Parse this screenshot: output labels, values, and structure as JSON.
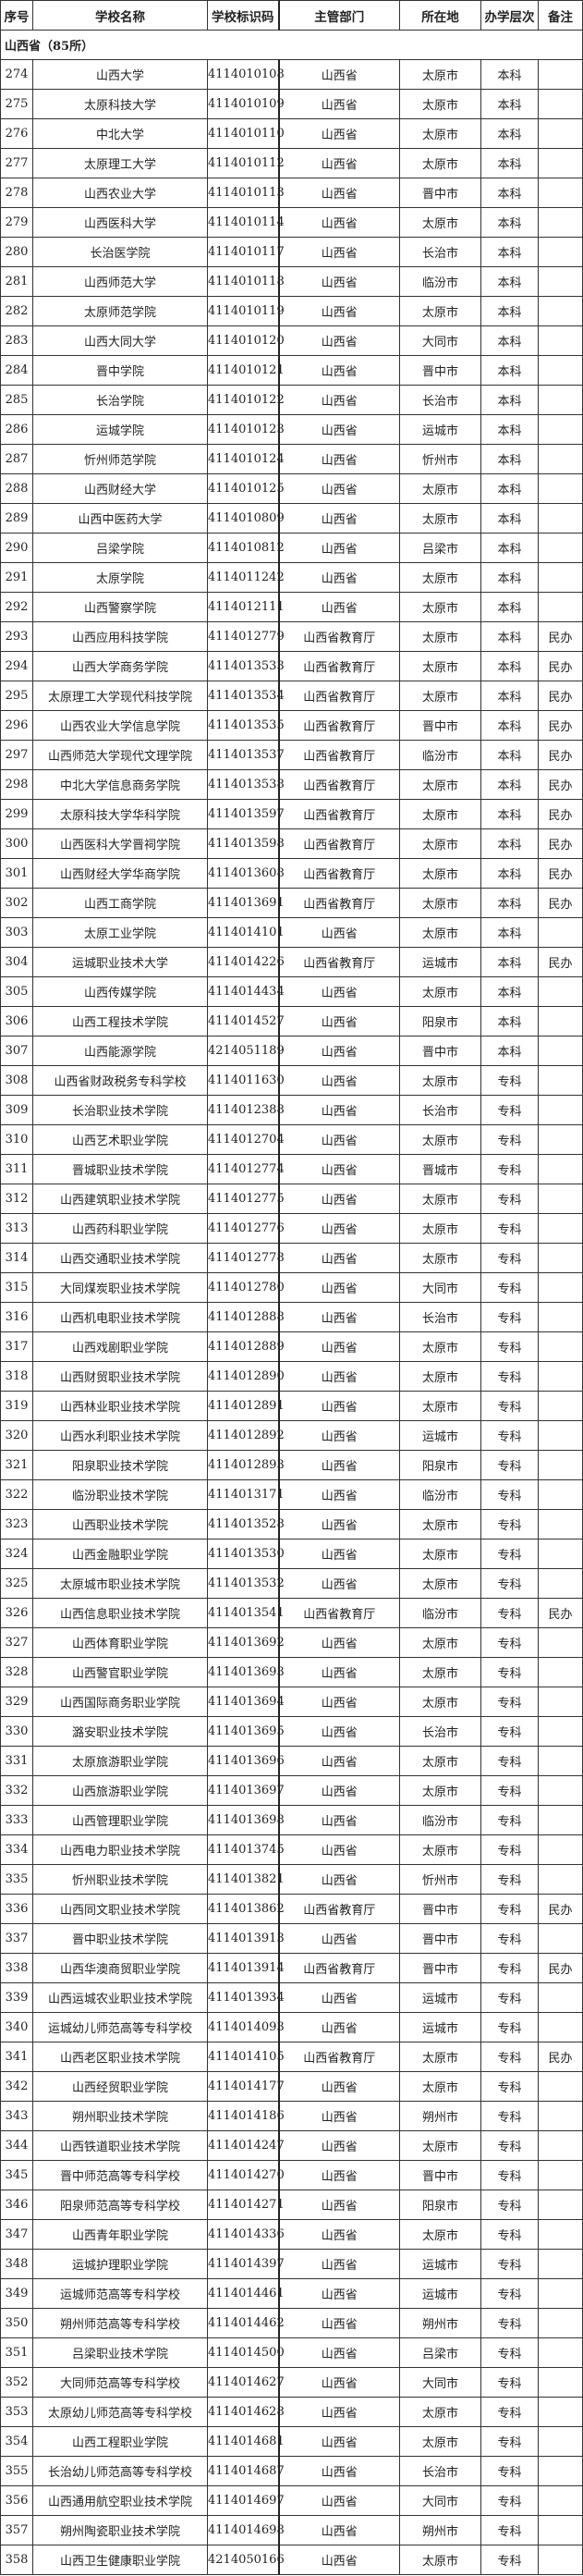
{
  "headers": [
    "序号",
    "学校名称",
    "学校标识码",
    "主管部门",
    "所在地",
    "办学层次",
    "备注"
  ],
  "section_title": "山西省（85所）",
  "rows": [
    [
      "274",
      "山西大学",
      "4114010108",
      "山西省",
      "太原市",
      "本科",
      ""
    ],
    [
      "275",
      "太原科技大学",
      "4114010109",
      "山西省",
      "太原市",
      "本科",
      ""
    ],
    [
      "276",
      "中北大学",
      "4114010110",
      "山西省",
      "太原市",
      "本科",
      ""
    ],
    [
      "277",
      "太原理工大学",
      "4114010112",
      "山西省",
      "太原市",
      "本科",
      ""
    ],
    [
      "278",
      "山西农业大学",
      "4114010113",
      "山西省",
      "晋中市",
      "本科",
      ""
    ],
    [
      "279",
      "山西医科大学",
      "4114010114",
      "山西省",
      "太原市",
      "本科",
      ""
    ],
    [
      "280",
      "长治医学院",
      "4114010117",
      "山西省",
      "长治市",
      "本科",
      ""
    ],
    [
      "281",
      "山西师范大学",
      "4114010118",
      "山西省",
      "临汾市",
      "本科",
      ""
    ],
    [
      "282",
      "太原师范学院",
      "4114010119",
      "山西省",
      "太原市",
      "本科",
      ""
    ],
    [
      "283",
      "山西大同大学",
      "4114010120",
      "山西省",
      "大同市",
      "本科",
      ""
    ],
    [
      "284",
      "晋中学院",
      "4114010121",
      "山西省",
      "晋中市",
      "本科",
      ""
    ],
    [
      "285",
      "长治学院",
      "4114010122",
      "山西省",
      "长治市",
      "本科",
      ""
    ],
    [
      "286",
      "运城学院",
      "4114010123",
      "山西省",
      "运城市",
      "本科",
      ""
    ],
    [
      "287",
      "忻州师范学院",
      "4114010124",
      "山西省",
      "忻州市",
      "本科",
      ""
    ],
    [
      "288",
      "山西财经大学",
      "4114010125",
      "山西省",
      "太原市",
      "本科",
      ""
    ],
    [
      "289",
      "山西中医药大学",
      "4114010809",
      "山西省",
      "太原市",
      "本科",
      ""
    ],
    [
      "290",
      "吕梁学院",
      "4114010812",
      "山西省",
      "吕梁市",
      "本科",
      ""
    ],
    [
      "291",
      "太原学院",
      "4114011242",
      "山西省",
      "太原市",
      "本科",
      ""
    ],
    [
      "292",
      "山西警察学院",
      "4114012111",
      "山西省",
      "太原市",
      "本科",
      ""
    ],
    [
      "293",
      "山西应用科技学院",
      "4114012779",
      "山西省教育厅",
      "太原市",
      "本科",
      "民办"
    ],
    [
      "294",
      "山西大学商务学院",
      "4114013533",
      "山西省教育厅",
      "太原市",
      "本科",
      "民办"
    ],
    [
      "295",
      "太原理工大学现代科技学院",
      "4114013534",
      "山西省教育厅",
      "太原市",
      "本科",
      "民办"
    ],
    [
      "296",
      "山西农业大学信息学院",
      "4114013535",
      "山西省教育厅",
      "晋中市",
      "本科",
      "民办"
    ],
    [
      "297",
      "山西师范大学现代文理学院",
      "4114013537",
      "山西省教育厅",
      "临汾市",
      "本科",
      "民办"
    ],
    [
      "298",
      "中北大学信息商务学院",
      "4114013538",
      "山西省教育厅",
      "太原市",
      "本科",
      "民办"
    ],
    [
      "299",
      "太原科技大学华科学院",
      "4114013597",
      "山西省教育厅",
      "太原市",
      "本科",
      "民办"
    ],
    [
      "300",
      "山西医科大学晋祠学院",
      "4114013598",
      "山西省教育厅",
      "太原市",
      "本科",
      "民办"
    ],
    [
      "301",
      "山西财经大学华商学院",
      "4114013608",
      "山西省教育厅",
      "太原市",
      "本科",
      "民办"
    ],
    [
      "302",
      "山西工商学院",
      "4114013691",
      "山西省教育厅",
      "太原市",
      "本科",
      "民办"
    ],
    [
      "303",
      "太原工业学院",
      "4114014101",
      "山西省",
      "太原市",
      "本科",
      ""
    ],
    [
      "304",
      "运城职业技术大学",
      "4114014226",
      "山西省教育厅",
      "运城市",
      "本科",
      "民办"
    ],
    [
      "305",
      "山西传媒学院",
      "4114014434",
      "山西省",
      "太原市",
      "本科",
      ""
    ],
    [
      "306",
      "山西工程技术学院",
      "4114014527",
      "山西省",
      "阳泉市",
      "本科",
      ""
    ],
    [
      "307",
      "山西能源学院",
      "4214051189",
      "山西省",
      "晋中市",
      "本科",
      ""
    ],
    [
      "308",
      "山西省财政税务专科学校",
      "4114011630",
      "山西省",
      "太原市",
      "专科",
      ""
    ],
    [
      "309",
      "长治职业技术学院",
      "4114012388",
      "山西省",
      "长治市",
      "专科",
      ""
    ],
    [
      "310",
      "山西艺术职业学院",
      "4114012704",
      "山西省",
      "太原市",
      "专科",
      ""
    ],
    [
      "311",
      "晋城职业技术学院",
      "4114012774",
      "山西省",
      "晋城市",
      "专科",
      ""
    ],
    [
      "312",
      "山西建筑职业技术学院",
      "4114012775",
      "山西省",
      "太原市",
      "专科",
      ""
    ],
    [
      "313",
      "山西药科职业学院",
      "4114012776",
      "山西省",
      "太原市",
      "专科",
      ""
    ],
    [
      "314",
      "山西交通职业技术学院",
      "4114012778",
      "山西省",
      "太原市",
      "专科",
      ""
    ],
    [
      "315",
      "大同煤炭职业技术学院",
      "4114012780",
      "山西省",
      "大同市",
      "专科",
      ""
    ],
    [
      "316",
      "山西机电职业技术学院",
      "4114012888",
      "山西省",
      "长治市",
      "专科",
      ""
    ],
    [
      "317",
      "山西戏剧职业学院",
      "4114012889",
      "山西省",
      "太原市",
      "专科",
      ""
    ],
    [
      "318",
      "山西财贸职业技术学院",
      "4114012890",
      "山西省",
      "太原市",
      "专科",
      ""
    ],
    [
      "319",
      "山西林业职业技术学院",
      "4114012891",
      "山西省",
      "太原市",
      "专科",
      ""
    ],
    [
      "320",
      "山西水利职业技术学院",
      "4114012892",
      "山西省",
      "运城市",
      "专科",
      ""
    ],
    [
      "321",
      "阳泉职业技术学院",
      "4114012893",
      "山西省",
      "阳泉市",
      "专科",
      ""
    ],
    [
      "322",
      "临汾职业技术学院",
      "4114013171",
      "山西省",
      "临汾市",
      "专科",
      ""
    ],
    [
      "323",
      "山西职业技术学院",
      "4114013528",
      "山西省",
      "太原市",
      "专科",
      ""
    ],
    [
      "324",
      "山西金融职业学院",
      "4114013530",
      "山西省",
      "太原市",
      "专科",
      ""
    ],
    [
      "325",
      "太原城市职业技术学院",
      "4114013532",
      "山西省",
      "太原市",
      "专科",
      ""
    ],
    [
      "326",
      "山西信息职业技术学院",
      "4114013541",
      "山西省教育厅",
      "临汾市",
      "专科",
      "民办"
    ],
    [
      "327",
      "山西体育职业学院",
      "4114013692",
      "山西省",
      "太原市",
      "专科",
      ""
    ],
    [
      "328",
      "山西警官职业学院",
      "4114013693",
      "山西省",
      "太原市",
      "专科",
      ""
    ],
    [
      "329",
      "山西国际商务职业学院",
      "4114013694",
      "山西省",
      "太原市",
      "专科",
      ""
    ],
    [
      "330",
      "潞安职业技术学院",
      "4114013695",
      "山西省",
      "长治市",
      "专科",
      ""
    ],
    [
      "331",
      "太原旅游职业学院",
      "4114013696",
      "山西省",
      "太原市",
      "专科",
      ""
    ],
    [
      "332",
      "山西旅游职业学院",
      "4114013697",
      "山西省",
      "太原市",
      "专科",
      ""
    ],
    [
      "333",
      "山西管理职业学院",
      "4114013698",
      "山西省",
      "临汾市",
      "专科",
      ""
    ],
    [
      "334",
      "山西电力职业技术学院",
      "4114013745",
      "山西省",
      "太原市",
      "专科",
      ""
    ],
    [
      "335",
      "忻州职业技术学院",
      "4114013821",
      "山西省",
      "忻州市",
      "专科",
      ""
    ],
    [
      "336",
      "山西同文职业技术学院",
      "4114013862",
      "山西省教育厅",
      "晋中市",
      "专科",
      "民办"
    ],
    [
      "337",
      "晋中职业技术学院",
      "4114013913",
      "山西省",
      "晋中市",
      "专科",
      ""
    ],
    [
      "338",
      "山西华澳商贸职业学院",
      "4114013914",
      "山西省教育厅",
      "晋中市",
      "专科",
      "民办"
    ],
    [
      "339",
      "山西运城农业职业技术学院",
      "4114013934",
      "山西省",
      "运城市",
      "专科",
      ""
    ],
    [
      "340",
      "运城幼儿师范高等专科学校",
      "4114014093",
      "山西省",
      "运城市",
      "专科",
      ""
    ],
    [
      "341",
      "山西老区职业技术学院",
      "4114014105",
      "山西省教育厅",
      "太原市",
      "专科",
      "民办"
    ],
    [
      "342",
      "山西经贸职业学院",
      "4114014177",
      "山西省",
      "太原市",
      "专科",
      ""
    ],
    [
      "343",
      "朔州职业技术学院",
      "4114014186",
      "山西省",
      "朔州市",
      "专科",
      ""
    ],
    [
      "344",
      "山西铁道职业技术学院",
      "4114014247",
      "山西省",
      "太原市",
      "专科",
      ""
    ],
    [
      "345",
      "晋中师范高等专科学校",
      "4114014270",
      "山西省",
      "晋中市",
      "专科",
      ""
    ],
    [
      "346",
      "阳泉师范高等专科学校",
      "4114014271",
      "山西省",
      "阳泉市",
      "专科",
      ""
    ],
    [
      "347",
      "山西青年职业学院",
      "4114014336",
      "山西省",
      "太原市",
      "专科",
      ""
    ],
    [
      "348",
      "运城护理职业学院",
      "4114014397",
      "山西省",
      "运城市",
      "专科",
      ""
    ],
    [
      "349",
      "运城师范高等专科学校",
      "4114014461",
      "山西省",
      "运城市",
      "专科",
      ""
    ],
    [
      "350",
      "朔州师范高等专科学校",
      "4114014462",
      "山西省",
      "朔州市",
      "专科",
      ""
    ],
    [
      "351",
      "吕梁职业技术学院",
      "4114014500",
      "山西省",
      "吕梁市",
      "专科",
      ""
    ],
    [
      "352",
      "大同师范高等专科学校",
      "4114014627",
      "山西省",
      "大同市",
      "专科",
      ""
    ],
    [
      "353",
      "太原幼儿师范高等专科学校",
      "4114014628",
      "山西省",
      "太原市",
      "专科",
      ""
    ],
    [
      "354",
      "山西工程职业学院",
      "4114014681",
      "山西省",
      "太原市",
      "专科",
      ""
    ],
    [
      "355",
      "长治幼儿师范高等专科学校",
      "4114014687",
      "山西省",
      "长治市",
      "专科",
      ""
    ],
    [
      "356",
      "山西通用航空职业技术学院",
      "4114014697",
      "山西省",
      "大同市",
      "专科",
      ""
    ],
    [
      "357",
      "朔州陶瓷职业技术学院",
      "4114014698",
      "山西省",
      "朔州市",
      "专科",
      ""
    ],
    [
      "358",
      "山西卫生健康职业学院",
      "4214050166",
      "山西省",
      "太原市",
      "专科",
      ""
    ]
  ]
}
